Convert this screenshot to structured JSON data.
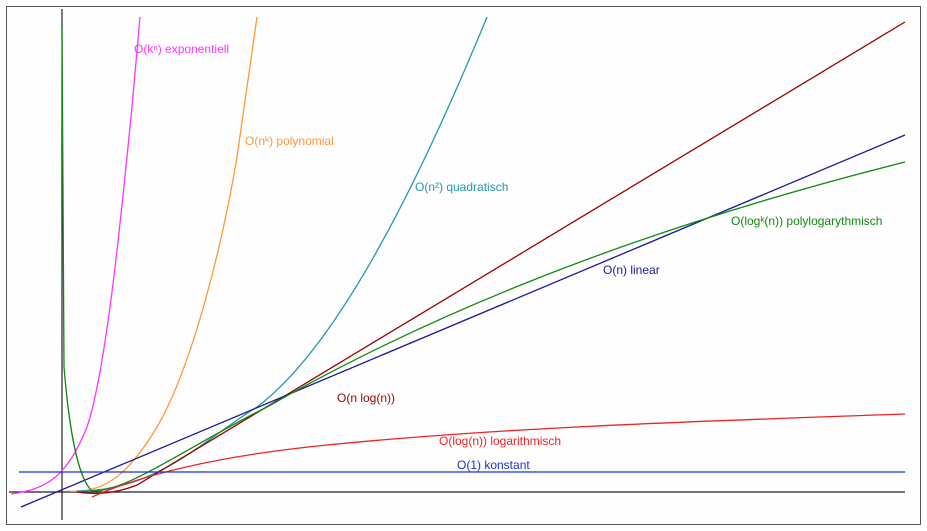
{
  "chart_data": {
    "type": "line",
    "title": "",
    "xlabel": "",
    "ylabel": "",
    "grid": false,
    "legend": "none (labels next to curves)",
    "series": [
      {
        "name": "O(kⁿ) exponentiell",
        "label_text": "O(kⁿ) exponentiell",
        "color": "#ff33ff",
        "form": "exponential growth"
      },
      {
        "name": "O(nᵏ) polynomial",
        "label_text": "O(nᵏ) polynomial",
        "color": "#ff9933",
        "form": "polynomial growth"
      },
      {
        "name": "O(n²) quadratisch",
        "label_text": "O(n²) quadratisch",
        "color": "#2299aa",
        "form": "quadratic growth"
      },
      {
        "name": "O(n log(n))",
        "label_text": "O(n log(n))",
        "color": "#990000",
        "form": "linearithmic growth"
      },
      {
        "name": "O(n) linear",
        "label_text": "O(n) linear",
        "color": "#1a1a99",
        "form": "linear growth"
      },
      {
        "name": "O(logᵏ(n)) polylogarythmisch",
        "label_text": "O(logᵏ(n)) polylogarythmisch",
        "color": "#118811",
        "form": "polylogarithmic growth"
      },
      {
        "name": "O(log(n)) logarithmisch",
        "label_text": "O(log(n)) logarithmisch",
        "color": "#ee2222",
        "form": "logarithmic growth"
      },
      {
        "name": "O(1) konstant",
        "label_text": "O(1) konstant",
        "color": "#1a33cc",
        "form": "constant"
      }
    ],
    "axis_color": "#222222"
  }
}
